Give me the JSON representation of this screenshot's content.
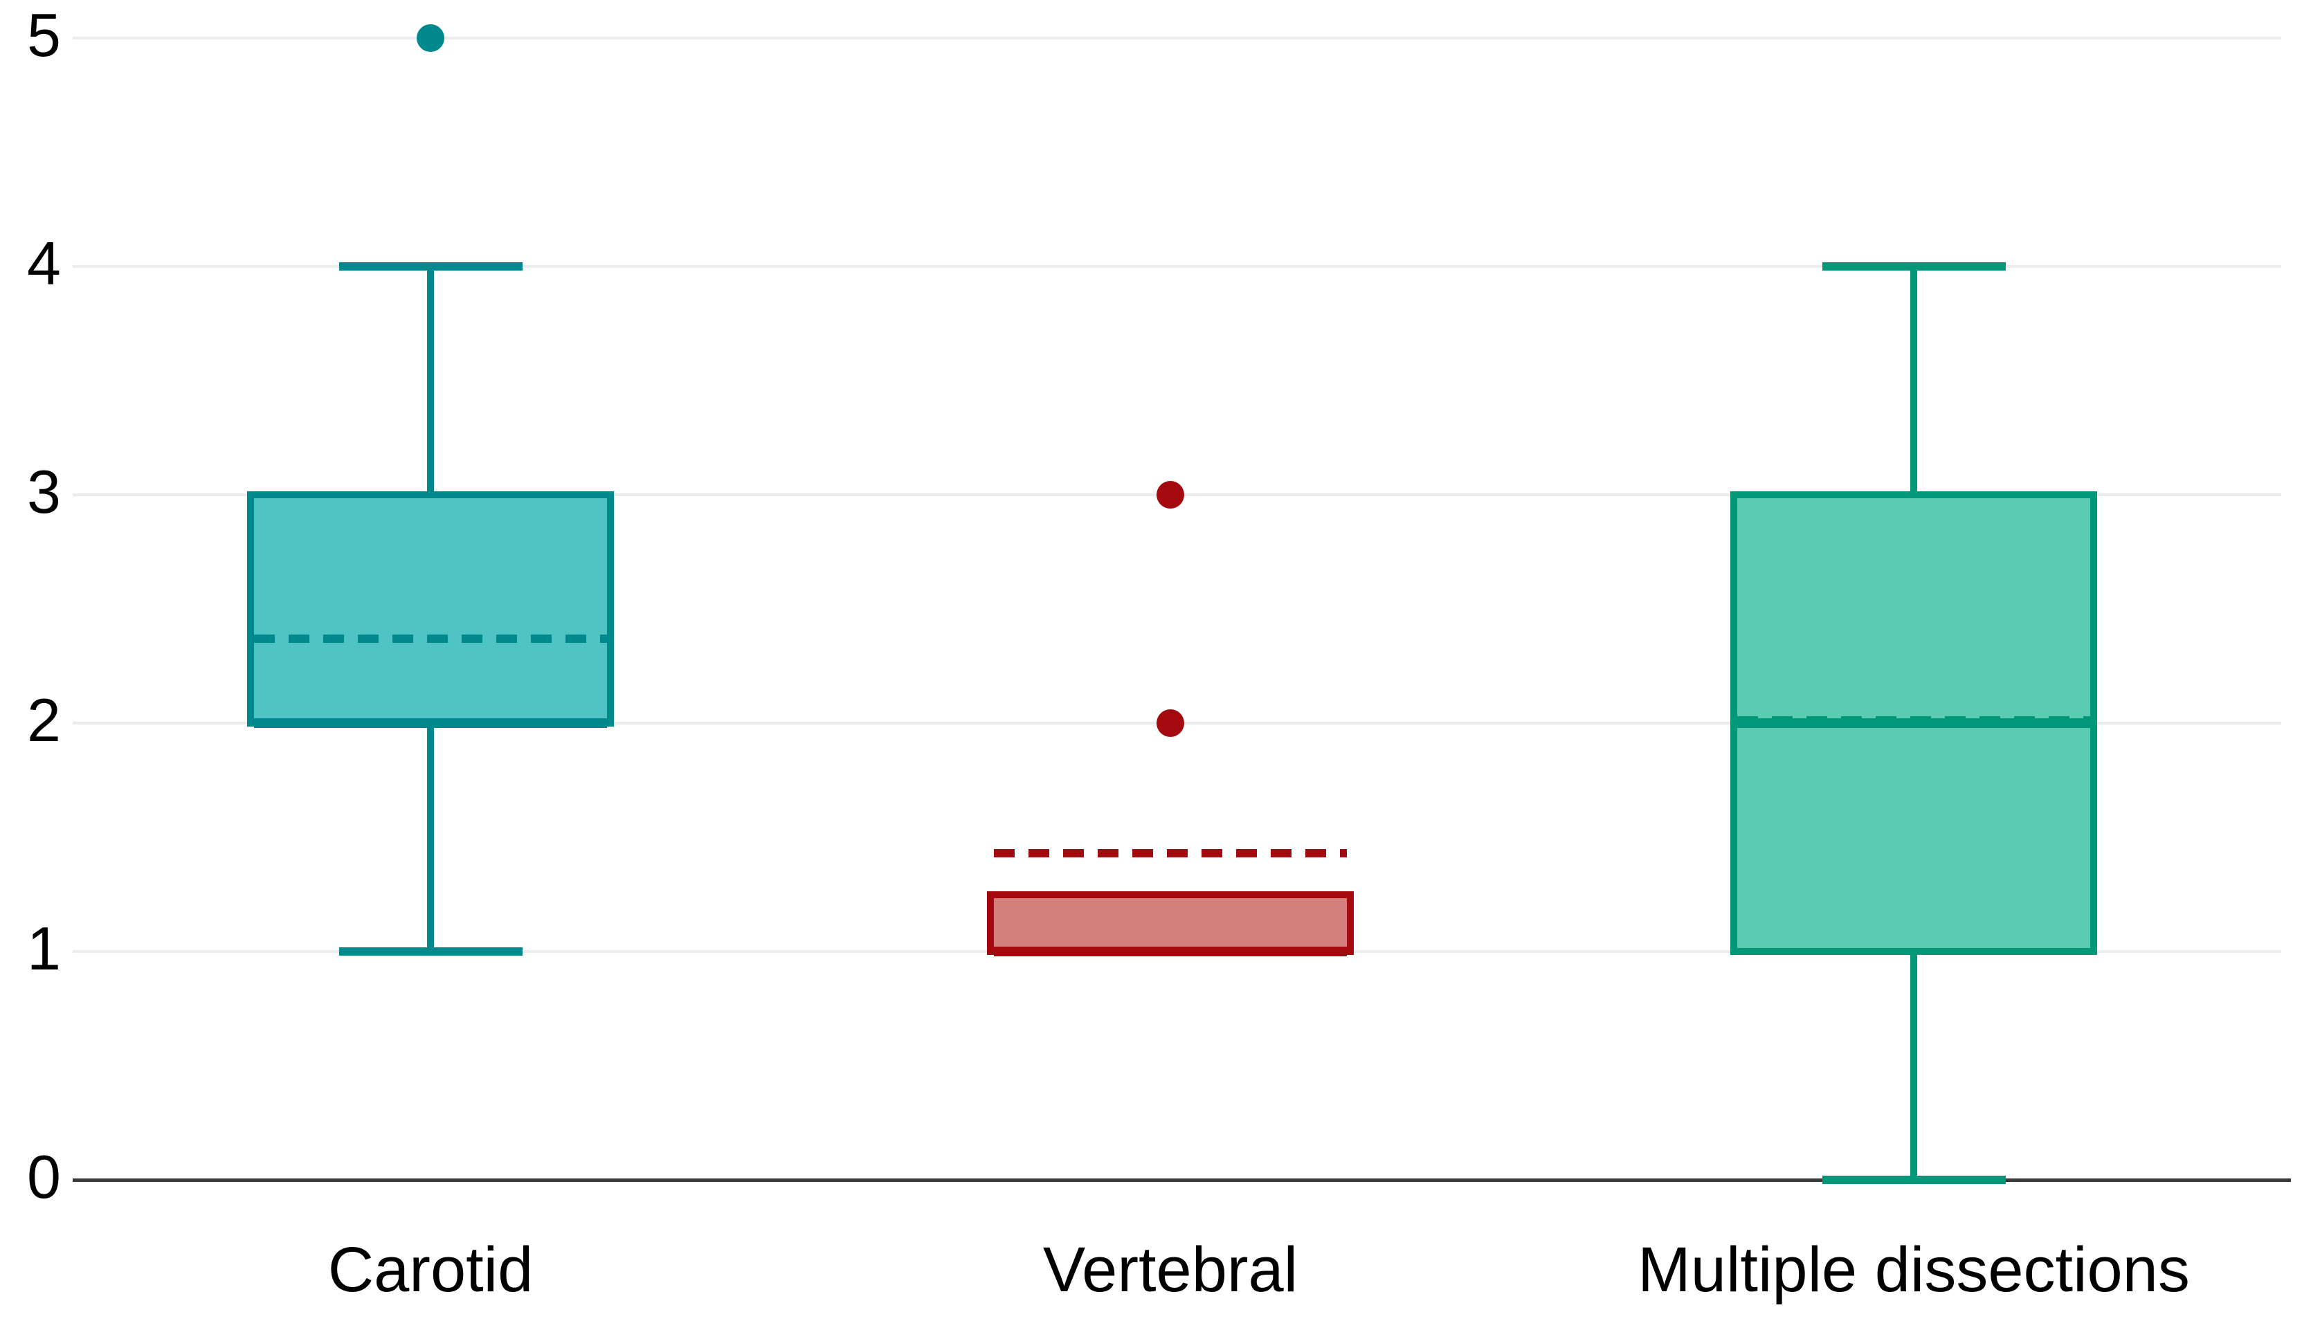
{
  "chart_data": {
    "type": "boxplot",
    "title": "",
    "xlabel": "",
    "ylabel": "",
    "ylim": [
      0,
      5
    ],
    "yticks": [
      0,
      1,
      2,
      3,
      4,
      5
    ],
    "grid": true,
    "legend_position": "none",
    "categories": [
      "Carotid",
      "Vertebral",
      "Multiple dissections"
    ],
    "series": [
      {
        "name": "Carotid",
        "whisker_low": 1,
        "q1": 2,
        "median": 2,
        "q3": 3,
        "whisker_high": 4,
        "mean": 2.37,
        "outliers": [
          5
        ],
        "fill": "#50C3C4",
        "stroke": "#00898D"
      },
      {
        "name": "Vertebral",
        "whisker_low": 1,
        "q1": 1,
        "median": 1,
        "q3": 1.25,
        "whisker_high": 1.25,
        "mean": 1.43,
        "outliers": [
          2,
          3
        ],
        "fill": "#D4807F",
        "stroke": "#A40910"
      },
      {
        "name": "Multiple dissections",
        "whisker_low": 0,
        "q1": 1,
        "median": 2,
        "q3": 3,
        "whisker_high": 4,
        "mean": 2.0,
        "outliers": [],
        "fill": "#5BCBB4",
        "stroke": "#009879"
      }
    ],
    "mean_line_style": "dashed",
    "median_line_style": "solid",
    "colors": {
      "background": "#ffffff",
      "gridline": "#ececec",
      "zero_axis": "#3a3a3a",
      "tick_label": "#000000"
    }
  }
}
